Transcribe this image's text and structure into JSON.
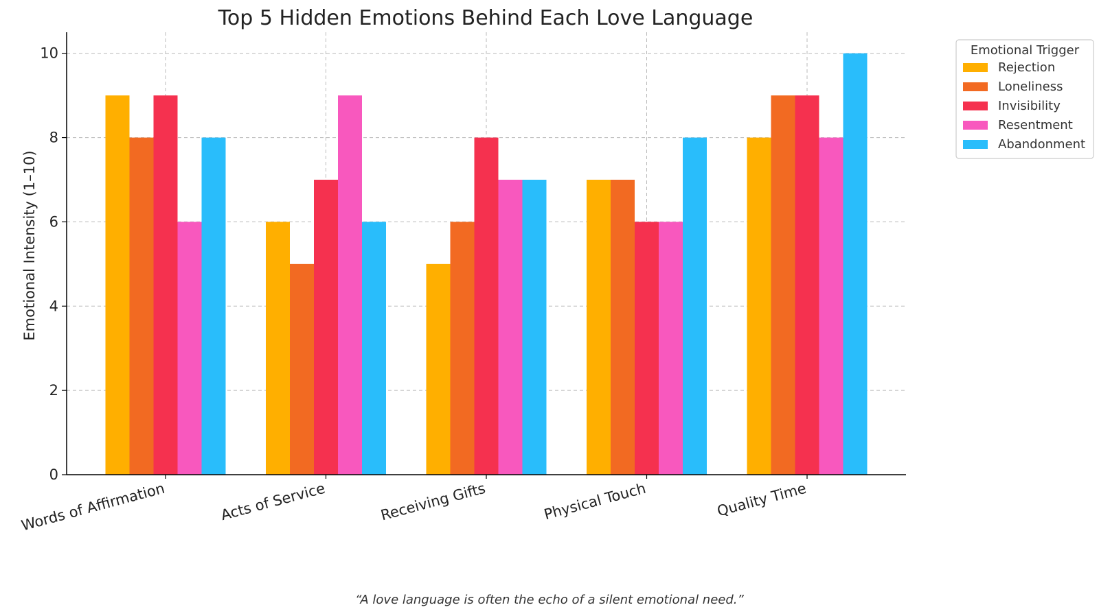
{
  "chart_data": {
    "type": "bar",
    "title": "Top 5 Hidden Emotions Behind Each Love Language",
    "xlabel": "",
    "ylabel": "Emotional Intensity (1–10)",
    "categories": [
      "Words of Affirmation",
      "Acts of Service",
      "Receiving Gifts",
      "Physical Touch",
      "Quality Time"
    ],
    "series": [
      {
        "name": "Rejection",
        "color": "#FFAF00",
        "values": [
          9,
          6,
          5,
          7,
          8
        ]
      },
      {
        "name": "Loneliness",
        "color": "#F26A22",
        "values": [
          8,
          5,
          6,
          7,
          9
        ]
      },
      {
        "name": "Invisibility",
        "color": "#F5314F",
        "values": [
          9,
          7,
          8,
          6,
          9
        ]
      },
      {
        "name": "Resentment",
        "color": "#F858BE",
        "values": [
          6,
          9,
          7,
          6,
          8
        ]
      },
      {
        "name": "Abandonment",
        "color": "#29BDFB",
        "values": [
          8,
          6,
          7,
          8,
          10
        ]
      }
    ],
    "ylim": [
      0,
      10.5
    ],
    "yticks": [
      0,
      2,
      4,
      6,
      8,
      10
    ],
    "grid": true,
    "legend": {
      "title": "Emotional Trigger",
      "placement": "upper-right-outside"
    }
  },
  "caption": "“A love language is often the echo of a silent emotional need.”"
}
